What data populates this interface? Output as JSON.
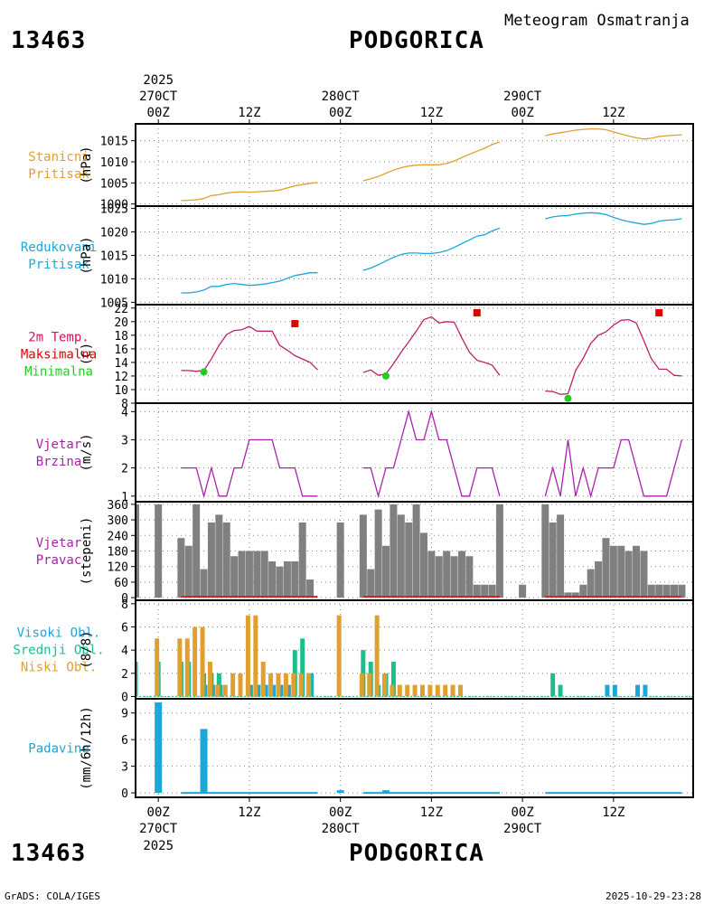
{
  "header": {
    "station_id": "13463",
    "station_name": "PODGORICA",
    "product": "Meteogram Osmatranja"
  },
  "time_axis": {
    "top_year": "2025",
    "top_labels": [
      {
        "t": 0,
        "lines": [
          "270CT",
          "00Z"
        ]
      },
      {
        "t": 12,
        "lines": [
          "12Z"
        ]
      },
      {
        "t": 24,
        "lines": [
          "280CT",
          "00Z"
        ]
      },
      {
        "t": 36,
        "lines": [
          "12Z"
        ]
      },
      {
        "t": 48,
        "lines": [
          "290CT",
          "00Z"
        ]
      },
      {
        "t": 60,
        "lines": [
          "12Z"
        ]
      }
    ],
    "bottom_labels": [
      {
        "t": 0,
        "lines": [
          "00Z",
          "270CT"
        ]
      },
      {
        "t": 12,
        "lines": [
          "12Z"
        ]
      },
      {
        "t": 24,
        "lines": [
          "00Z",
          "280CT"
        ]
      },
      {
        "t": 36,
        "lines": [
          "12Z"
        ]
      },
      {
        "t": 48,
        "lines": [
          "00Z",
          "290CT"
        ]
      },
      {
        "t": 60,
        "lines": [
          "12Z"
        ]
      }
    ],
    "bottom_year": "2025",
    "t_min": -3,
    "t_max": 70.5
  },
  "footer": {
    "left": "GrADS: COLA/IGES",
    "right": "2025-10-29-23:28"
  },
  "chart_data": [
    {
      "id": "station_pressure",
      "type": "line",
      "labels": [
        "Stanicni",
        "Pritisak"
      ],
      "label_colors": [
        "#e0a030",
        "#e0a030"
      ],
      "ylabel": "(hPa)",
      "ylim": [
        999.5,
        1019
      ],
      "ticks": [
        1000,
        1005,
        1010,
        1015
      ],
      "color": "#e0a030",
      "segments": [
        {
          "t": [
            3,
            4,
            5,
            6,
            7,
            8,
            9,
            10,
            11,
            12,
            13,
            14,
            15,
            16,
            17,
            18,
            19,
            20,
            21
          ],
          "v": [
            1000.8,
            1000.9,
            1001,
            1001.3,
            1002,
            1002.2,
            1002.6,
            1002.8,
            1002.9,
            1002.8,
            1002.9,
            1003,
            1003.1,
            1003.3,
            1003.8,
            1004.3,
            1004.6,
            1004.9,
            1005.1
          ]
        },
        {
          "t": [
            27,
            28,
            29,
            30,
            31,
            32,
            33,
            34,
            35,
            36,
            37,
            38,
            39,
            40,
            41,
            42,
            43,
            44,
            45
          ],
          "v": [
            1005.5,
            1006,
            1006.5,
            1007.3,
            1008,
            1008.6,
            1009,
            1009.2,
            1009.3,
            1009.3,
            1009.3,
            1009.6,
            1010.2,
            1011,
            1011.8,
            1012.5,
            1013.2,
            1014.1,
            1014.7
          ]
        },
        {
          "t": [
            51,
            52,
            53,
            54,
            55,
            56,
            57,
            58,
            59,
            60,
            61,
            62,
            63,
            64,
            65,
            66,
            67,
            68,
            69
          ],
          "v": [
            1016.2,
            1016.6,
            1016.9,
            1017.2,
            1017.5,
            1017.7,
            1017.8,
            1017.8,
            1017.6,
            1017.1,
            1016.6,
            1016.1,
            1015.7,
            1015.4,
            1015.6,
            1016,
            1016.2,
            1016.3,
            1016.4
          ]
        }
      ]
    },
    {
      "id": "reduced_pressure",
      "type": "line",
      "labels": [
        "Redukovani",
        "Pritisak"
      ],
      "label_colors": [
        "#1ba7d8",
        "#1ba7d8"
      ],
      "ylabel": "(hPa)",
      "ylim": [
        1004.5,
        1025.5
      ],
      "ticks": [
        1005,
        1010,
        1015,
        1020,
        1025
      ],
      "color": "#1ba7d8",
      "segments": [
        {
          "t": [
            3,
            4,
            5,
            6,
            7,
            8,
            9,
            10,
            11,
            12,
            13,
            14,
            15,
            16,
            17,
            18,
            19,
            20,
            21
          ],
          "v": [
            1007,
            1007,
            1007.2,
            1007.6,
            1008.4,
            1008.4,
            1008.8,
            1009,
            1008.8,
            1008.6,
            1008.7,
            1008.9,
            1009.2,
            1009.5,
            1010.1,
            1010.7,
            1011,
            1011.3,
            1011.3
          ]
        },
        {
          "t": [
            27,
            28,
            29,
            30,
            31,
            32,
            33,
            34,
            35,
            36,
            37,
            38,
            39,
            40,
            41,
            42,
            43,
            44,
            45
          ],
          "v": [
            1011.8,
            1012.3,
            1013,
            1013.8,
            1014.6,
            1015.2,
            1015.5,
            1015.5,
            1015.4,
            1015.4,
            1015.6,
            1016,
            1016.7,
            1017.5,
            1018.3,
            1019.1,
            1019.4,
            1020.2,
            1020.8
          ]
        },
        {
          "t": [
            51,
            52,
            53,
            54,
            55,
            56,
            57,
            58,
            59,
            60,
            61,
            62,
            63,
            64,
            65,
            66,
            67,
            68,
            69
          ],
          "v": [
            1022.8,
            1023.2,
            1023.4,
            1023.5,
            1023.8,
            1024,
            1024.1,
            1024,
            1023.7,
            1023.1,
            1022.6,
            1022.2,
            1021.9,
            1021.6,
            1021.8,
            1022.3,
            1022.5,
            1022.6,
            1022.8
          ]
        }
      ]
    },
    {
      "id": "temperature",
      "type": "line",
      "labels": [
        "2m Temp.",
        "Maksimalna",
        "Minimalna"
      ],
      "label_colors": [
        "#d4145a",
        "#e00000",
        "#22cc22"
      ],
      "ylabel": "(C)",
      "ylim": [
        8,
        22.5
      ],
      "ticks": [
        8,
        10,
        12,
        14,
        16,
        18,
        20,
        22
      ],
      "color": "#c0206a",
      "segments": [
        {
          "t": [
            3,
            4,
            5,
            6,
            7,
            8,
            9,
            10,
            11,
            12,
            13,
            14,
            15,
            16,
            17,
            18,
            19,
            20,
            21
          ],
          "v": [
            12.8,
            12.8,
            12.7,
            12.8,
            14.5,
            16.5,
            18.1,
            18.7,
            18.8,
            19.3,
            18.6,
            18.6,
            18.6,
            16.5,
            15.8,
            15,
            14.5,
            14,
            12.9
          ]
        },
        {
          "t": [
            27,
            28,
            29,
            30,
            31,
            32,
            33,
            34,
            35,
            36,
            37,
            38,
            39,
            40,
            41,
            42,
            43,
            44,
            45
          ],
          "v": [
            12.5,
            12.9,
            12.1,
            12.3,
            13.8,
            15.5,
            17,
            18.6,
            20.3,
            20.7,
            19.8,
            20,
            19.9,
            17.6,
            15.5,
            14.3,
            14,
            13.6,
            12.1
          ]
        },
        {
          "t": [
            51,
            52,
            53,
            54,
            55,
            56,
            57,
            58,
            59,
            60,
            61,
            62,
            63,
            64,
            65,
            66,
            67,
            68,
            69
          ],
          "v": [
            9.8,
            9.7,
            9.3,
            9.4,
            12.8,
            14.6,
            16.8,
            18,
            18.5,
            19.5,
            20.2,
            20.3,
            19.8,
            17.2,
            14.5,
            13,
            13,
            12.1,
            12
          ]
        }
      ],
      "maxima": [
        {
          "t": 18,
          "v": 19.7
        },
        {
          "t": 42,
          "v": 21.3
        },
        {
          "t": 66,
          "v": 21.3
        }
      ],
      "minima": [
        {
          "t": 6,
          "v": 12.6
        },
        {
          "t": 30,
          "v": 12
        },
        {
          "t": 54,
          "v": 8.7
        }
      ],
      "max_color": "#e00000",
      "min_color": "#22cc22"
    },
    {
      "id": "wind_speed",
      "type": "line",
      "labels": [
        "Vjetar",
        "Brzina"
      ],
      "label_colors": [
        "#aa22aa",
        "#aa22aa"
      ],
      "ylabel": "(m/s)",
      "ylim": [
        0.8,
        4.3
      ],
      "ticks": [
        1,
        2,
        3,
        4
      ],
      "color": "#aa22aa",
      "segments": [
        {
          "t": [
            3,
            4,
            5,
            6,
            7,
            8,
            9,
            10,
            11,
            12,
            13,
            14,
            15,
            16,
            17,
            18,
            19,
            20,
            21
          ],
          "v": [
            2,
            2,
            2,
            1,
            2,
            1,
            1,
            2,
            2,
            3,
            3,
            3,
            3,
            2,
            2,
            2,
            1,
            1,
            1
          ]
        },
        {
          "t": [
            27,
            28,
            29,
            30,
            31,
            32,
            33,
            34,
            35,
            36,
            37,
            38,
            39,
            40,
            41,
            42,
            43,
            44,
            45
          ],
          "v": [
            2,
            2,
            1,
            2,
            2,
            3,
            4,
            3,
            3,
            4,
            3,
            3,
            2,
            1,
            1,
            2,
            2,
            2,
            1
          ]
        },
        {
          "t": [
            51,
            52,
            53,
            54,
            55,
            56,
            57,
            58,
            59,
            60,
            61,
            62,
            63,
            64,
            65,
            66,
            67,
            68,
            69
          ],
          "v": [
            1,
            2,
            1,
            3,
            1,
            2,
            1,
            2,
            2,
            2,
            3,
            3,
            2,
            1,
            1,
            1,
            1,
            2,
            3
          ]
        }
      ]
    },
    {
      "id": "wind_direction",
      "type": "bar",
      "labels": [
        "Vjetar",
        "Pravac"
      ],
      "label_colors": [
        "#aa22aa",
        "#aa22aa"
      ],
      "ylabel": "(stepeni)",
      "ylim": [
        -10,
        370
      ],
      "ticks": [
        0,
        60,
        120,
        180,
        240,
        300,
        360
      ],
      "color": "#808080",
      "baseline_color": "#d02020",
      "baseline_ranges": [
        [
          3,
          21
        ],
        [
          27,
          45
        ],
        [
          51,
          69
        ]
      ],
      "t": [
        -3,
        0,
        3,
        4,
        5,
        6,
        7,
        8,
        9,
        10,
        11,
        12,
        13,
        14,
        15,
        16,
        17,
        18,
        19,
        20,
        21,
        24,
        27,
        28,
        29,
        30,
        31,
        32,
        33,
        34,
        35,
        36,
        37,
        38,
        39,
        40,
        41,
        42,
        43,
        44,
        45,
        48,
        51,
        52,
        53,
        54,
        55,
        56,
        57,
        58,
        59,
        60,
        61,
        62,
        63,
        64,
        65,
        66,
        67,
        68,
        69
      ],
      "v": [
        360,
        360,
        230,
        200,
        360,
        110,
        290,
        320,
        290,
        160,
        180,
        180,
        180,
        180,
        140,
        120,
        140,
        140,
        290,
        70,
        0,
        290,
        320,
        110,
        340,
        200,
        360,
        320,
        290,
        360,
        250,
        180,
        160,
        180,
        160,
        180,
        160,
        50,
        50,
        50,
        360,
        50,
        360,
        290,
        320,
        20,
        20,
        50,
        110,
        140,
        230,
        200,
        200,
        180,
        200,
        180,
        50,
        50,
        50,
        50,
        50
      ]
    },
    {
      "id": "cloud_cover",
      "type": "bar",
      "labels": [
        "Visoki Obl.",
        "Srednji Obl.",
        "Niski Obl."
      ],
      "label_colors": [
        "#1ba7d8",
        "#1dbd8c",
        "#e0a030"
      ],
      "ylabel": "(8/8)",
      "ylim": [
        -0.2,
        8.3
      ],
      "ticks": [
        0,
        2,
        4,
        6,
        8
      ],
      "series": [
        {
          "name": "Visoki Obl.",
          "color": "#1ba7d8",
          "t": [
            6,
            7,
            8,
            12,
            13,
            14,
            15,
            16,
            17,
            20,
            59,
            60,
            63,
            64
          ],
          "v": [
            1,
            1,
            1,
            1,
            1,
            1,
            1,
            1,
            1,
            2,
            1,
            1,
            1,
            1
          ]
        },
        {
          "name": "Srednji Obl.",
          "color": "#1dbd8c",
          "t": [
            -3,
            0,
            3,
            4,
            6,
            7,
            8,
            18,
            19,
            20,
            27,
            28,
            29,
            30,
            31,
            52,
            53
          ],
          "v": [
            3,
            3,
            3,
            3,
            2,
            2,
            2,
            4,
            5,
            2,
            4,
            3,
            1,
            2,
            3,
            2,
            1
          ]
        },
        {
          "name": "Niski Obl.",
          "color": "#e0a030",
          "t": [
            0,
            3,
            4,
            5,
            6,
            7,
            8,
            9,
            10,
            11,
            12,
            13,
            14,
            15,
            16,
            17,
            18,
            19,
            20,
            24,
            27,
            28,
            29,
            30,
            31,
            32,
            33,
            34,
            35,
            36,
            37,
            38,
            39,
            40
          ],
          "v": [
            5,
            5,
            5,
            6,
            6,
            3,
            1,
            1,
            2,
            2,
            7,
            7,
            3,
            2,
            2,
            2,
            2,
            2,
            2,
            7,
            2,
            2,
            7,
            2,
            1,
            1,
            1,
            1,
            1,
            1,
            1,
            1,
            1,
            1
          ]
        }
      ]
    },
    {
      "id": "precipitation",
      "type": "bar",
      "labels": [
        "Padavine"
      ],
      "label_colors": [
        "#1ba7d8"
      ],
      "ylabel": "(mm/6h/12h)",
      "ylim": [
        -0.5,
        10.6
      ],
      "ticks": [
        0,
        3,
        6,
        9
      ],
      "color": "#1ba7d8",
      "t": [
        0,
        6,
        24,
        30
      ],
      "v": [
        10.2,
        7.2,
        0.3,
        0.3
      ],
      "trace_ranges": [
        [
          3,
          21
        ],
        [
          27,
          45
        ],
        [
          51,
          69
        ]
      ]
    }
  ]
}
